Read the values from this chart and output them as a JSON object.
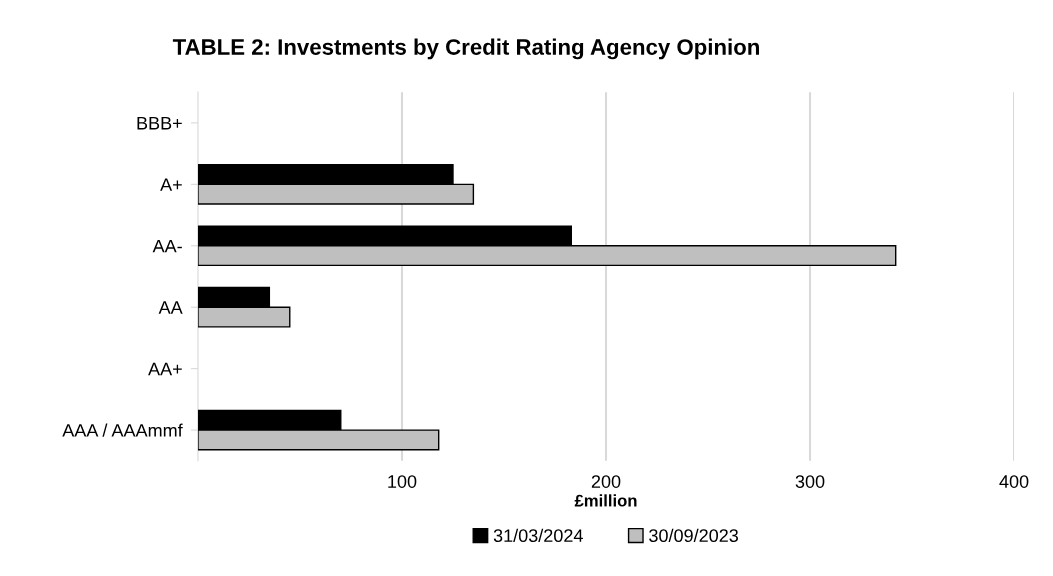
{
  "chart_data": {
    "type": "bar",
    "orientation": "horizontal",
    "title": "TABLE 2: Investments by Credit Rating Agency Opinion",
    "xlabel": "£million",
    "categories": [
      "BBB+",
      "A+",
      "AA-",
      "AA",
      "AA+",
      "AAA / AAAmmf"
    ],
    "series": [
      {
        "name": "31/03/2024",
        "color": "#000000",
        "values": [
          null,
          125,
          183,
          35,
          null,
          70
        ]
      },
      {
        "name": "30/09/2023",
        "color": "#bfbfbf",
        "values": [
          null,
          135,
          342,
          45,
          null,
          118
        ]
      }
    ],
    "xlim": [
      0,
      400
    ],
    "xticks": [
      100,
      200,
      300,
      400
    ],
    "grid": "x",
    "legend": "bottom"
  }
}
